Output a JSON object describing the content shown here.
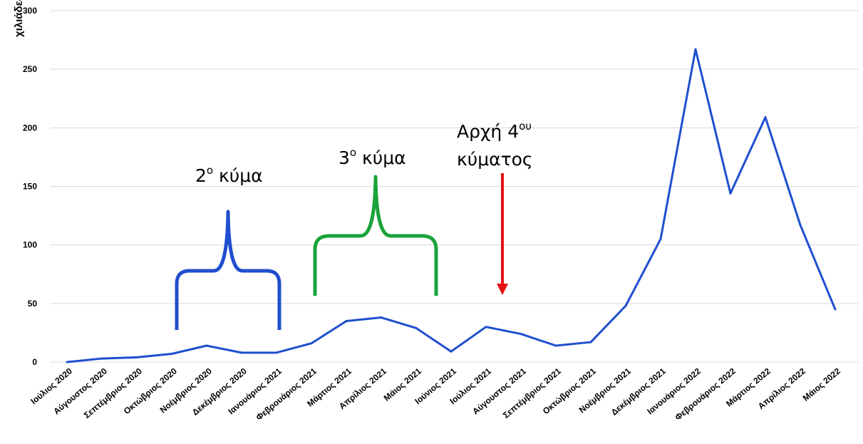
{
  "chart_data": {
    "type": "line",
    "ylabel": "χιλιάδες",
    "ylim": [
      0,
      300
    ],
    "yticks": [
      0,
      50,
      100,
      150,
      200,
      250,
      300
    ],
    "grid": true,
    "categories": [
      "Ιούλιος 2020",
      "Αύγουστος 2020",
      "Σεπτέμβριος 2020",
      "Οκτώβριος 2020",
      "Νοέμβριος 2020",
      "Δεκέμβριος 2020",
      "Ιανουάριος 2021",
      "Φεβρουάριος 2021",
      "Μάρτιος 2021",
      "Απρίλιος 2021",
      "Μάιος 2021",
      "Ιούνιος 2021",
      "Ιούλιος 2021",
      "Αύγουστος 2021",
      "Σεπτέμβριος 2021",
      "Οκτώβριος 2021",
      "Νοέμβριος 2021",
      "Δεκέμβριος 2021",
      "Ιανουάριος 2022",
      "Φεβρουάριος 2022",
      "Μάρτιος 2022",
      "Απρίλιος 2022",
      "Μάιος 2022"
    ],
    "series": [
      {
        "values": [
          0,
          3,
          4,
          7,
          14,
          8,
          8,
          16,
          35,
          38,
          29,
          9,
          30,
          24,
          14,
          17,
          48,
          105,
          267,
          144,
          209,
          117,
          45
        ],
        "color": "#1f4fcf"
      }
    ],
    "annotations": [
      {
        "text": "2",
        "sup": "ο",
        "rest": " κύμα",
        "color": "#1f4fcf"
      },
      {
        "text": "3",
        "sup": "ο",
        "rest": " κύμα",
        "color": "#1aa33a"
      },
      {
        "text": "Αρχή 4",
        "sup": "ου",
        "line2": "κύματος",
        "color": "#e31212"
      }
    ]
  }
}
